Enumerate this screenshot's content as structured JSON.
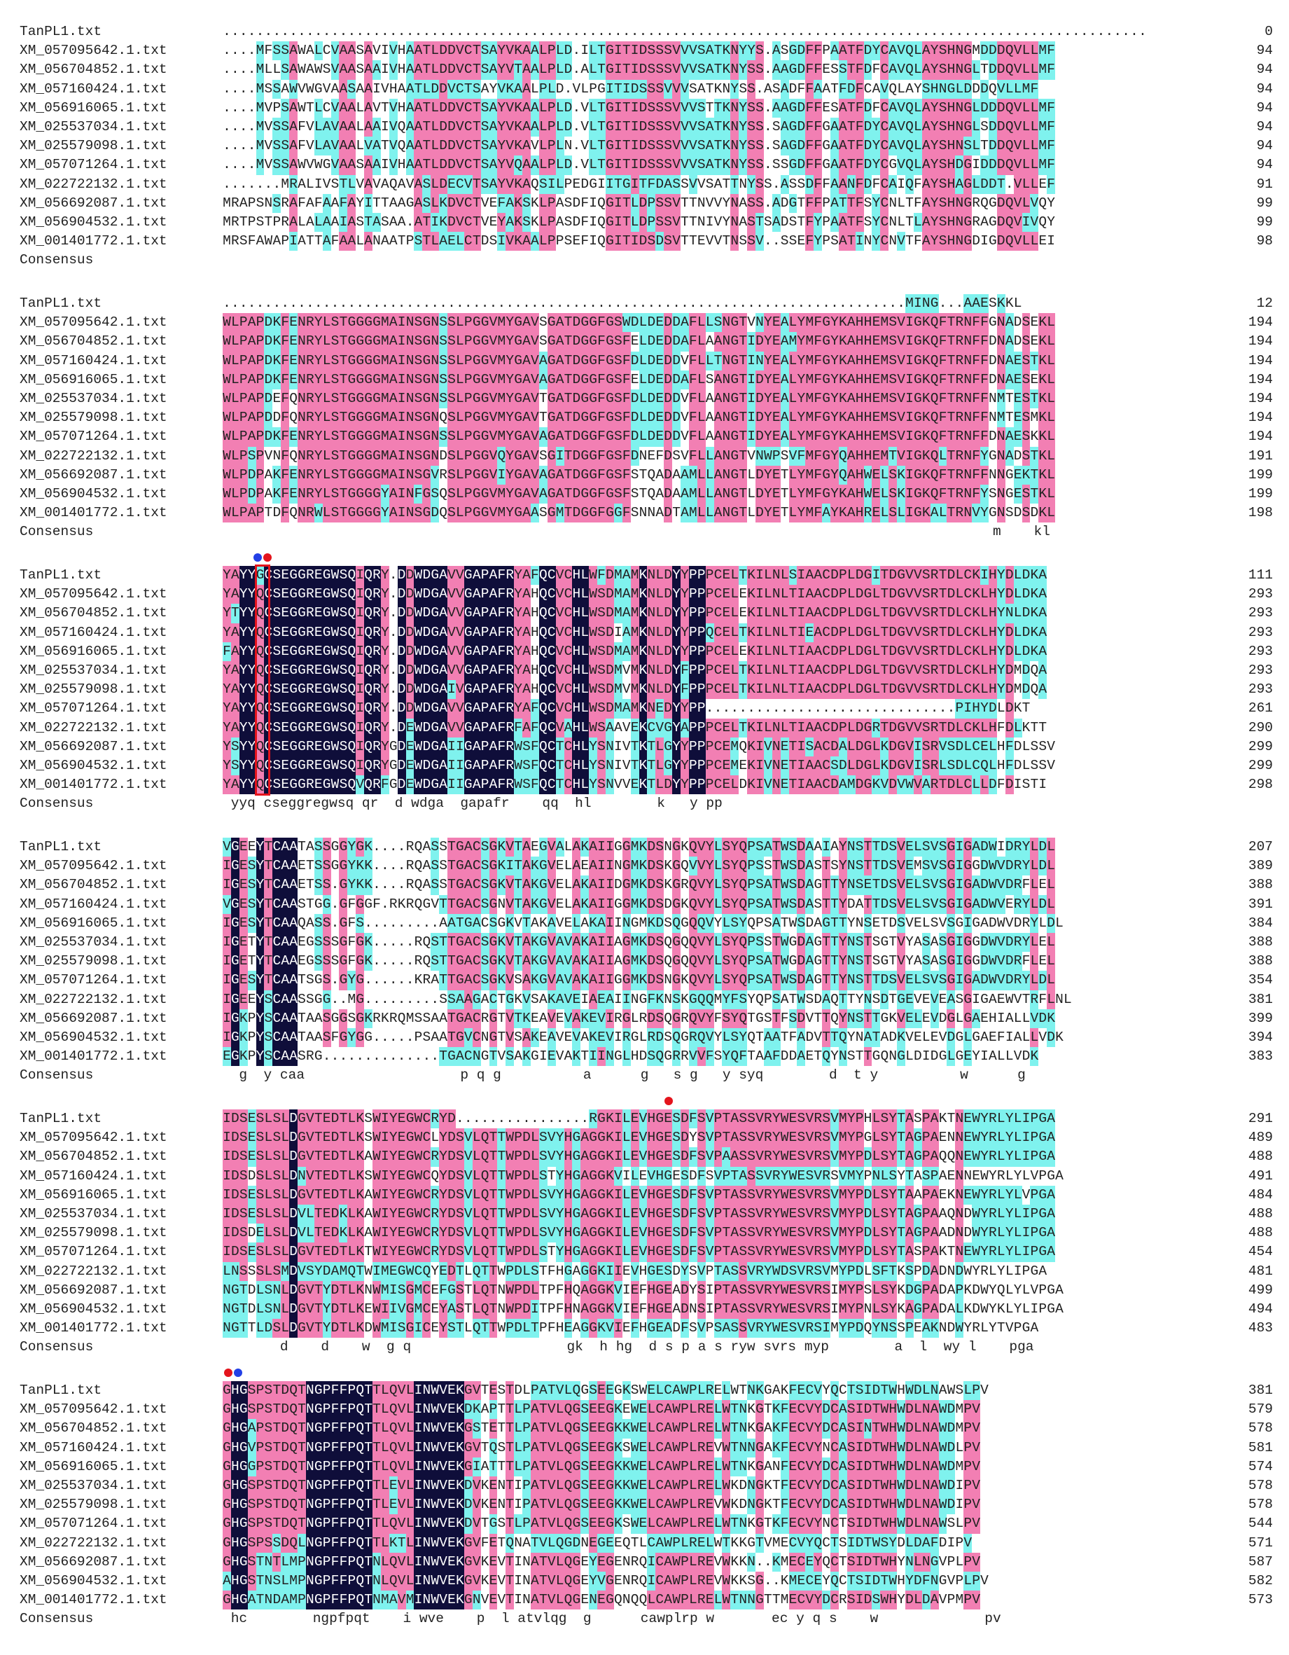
{
  "colors": {
    "identical": "#0f0e3a",
    "similar_high": "#f27fb3",
    "similar_low": "#7ff2ee",
    "highlight_box": "#e4141c",
    "dot_red": "#e4141c",
    "dot_blue": "#2340e6"
  },
  "blocks": [
    {
      "rows": [
        {
          "name": "TanPL1.txt",
          "seq": "...............................................................................................................",
          "num": "0"
        },
        {
          "name": "XM_057095642.1.txt",
          "seq": "....MFSSAWALCVAASAVIVHAATLDDVCTSAYVKAALPLD.ILTGITIDSSSVVVSATKNYYS.ASGDFFPAATFDYCAVQLAYSHNGMDDDQVLLMF",
          "num": "94"
        },
        {
          "name": "XM_056704852.1.txt",
          "seq": "....MLLSAWAWSVAASAAIVHAATLDDVCTSAYVTAALPLD.ALTGITIDSSSVVVSATKNYSS.AAGDFFESSTFDFCAVQLAYSHNGLTDDQVLLMF",
          "num": "94"
        },
        {
          "name": "XM_057160424.1.txt",
          "seq": "....MSSAWVWGVAASAAIVHAATLDDVCTSAYVKAALPLD.VLPGITIDSSSVVVSATKNYSS.ASADFFAATFDFCAVQLAYSHNGLDDDQVLLMF",
          "num": "94"
        },
        {
          "name": "XM_056916065.1.txt",
          "seq": "....MVPSAWTLCVAALAVTVHAATLDDVCTSAYVKAALPLD.VLTGITIDSSSVVVSTTKNYSS.AAGDFFESATFDFCAVQLAYSHNGLDDDQVLLMF",
          "num": "94"
        },
        {
          "name": "XM_025537034.1.txt",
          "seq": "....MVSSAFVLAVAALAAIVQAATLDDVCTSAYVKAALPLD.VLTGITIDSSSVVVSATKNYSS.SAGDFFGAATFDYCAVQLAYSHNGLSDDQVLLMF",
          "num": "94"
        },
        {
          "name": "XM_025579098.1.txt",
          "seq": "....MVSSAFVLAVAALVATVQAATLDDVCTSAYVKAVLPLN.VLTGITIDSSSVVVSATKNYSS.SAGDFFGAATFDYCAVQLAYSHNSLTDDQVLLMF",
          "num": "94"
        },
        {
          "name": "XM_057071264.1.txt",
          "seq": "....MVSSAWVWGVAASAAIVHAATLDDVCTSAYVQAALPLD.VLTGITIDSSSVVVSATKNYSS.SSGDFFGAATFDYCGVQLAYSHDGIDDDQVLLMF",
          "num": "94"
        },
        {
          "name": "XM_022722132.1.txt",
          "seq": ".......MRALIVSTLVAVAQAVASLDECVTSAYVKAQSILPEDGIITGITFDASSVVSATTNYSS.ASSDFFAANFDFCAIQFAYSHAGLDDT.VLLEF",
          "num": "91"
        },
        {
          "name": "XM_056692087.1.txt",
          "seq": "MRAPSNSRAFAFAAFAYITTAAGASLKDVCTVEFAKSKLPASDFIQGITLDPSSVTTNVVYNASS.ADGTFFPATTFSYCNLTFAYSHNGRQGDQVLVQY",
          "num": "99"
        },
        {
          "name": "XM_056904532.1.txt",
          "seq": "MRTPSTPRALALAAIASTASAA.ATIKDVCTVEYAKSKLPASDFIQGITLDPSSVTTNIVYNASTSADSTFYPAATFSYCNLTLAYSHNGRAGDQVIVQY",
          "num": "99"
        },
        {
          "name": "XM_001401772.1.txt",
          "seq": "MRSFAWAPIATTAFAALANAATPSTLAELCTDSIVKAALPPSEFIQGITIDSDSVTTEVVTNSSV..SSEFYPSATINYCNVTFAYSHNGDIGDQVLLEI",
          "num": "98"
        }
      ],
      "consensus": ""
    },
    {
      "rows": [
        {
          "name": "TanPL1.txt",
          "seq": "..................................................................................MING...AAESKKL",
          "num": "12"
        },
        {
          "name": "XM_057095642.1.txt",
          "seq": "WLPAPDKFENRYLSTGGGGMAINSGNSSLPGGVMYGAVSGATDGGFGSWDLDEDDAFLLSNGTVNYEALYMFGYKAHHEMSVIGKQFTRNFFGNADSEKL",
          "num": "194"
        },
        {
          "name": "XM_056704852.1.txt",
          "seq": "WLPAPDKFENRYLSTGGGGMAINSGNSSLPGGVMYGAVSGATDGGFGSFELDEDDAFLAANGTIDYEAMYMFGYKAHHEMSVIGKQFTRNFFDNADSEKL",
          "num": "194"
        },
        {
          "name": "XM_057160424.1.txt",
          "seq": "WLPAPDKFENRYLSTGGGGMAINSGNSSLPGGVMYGAVAGATDGGFGSFDLDEDDVFLLTNGTINYEALYMFGYKAHHEMSVIGKQFTRNFFDNAESTKL",
          "num": "194"
        },
        {
          "name": "XM_056916065.1.txt",
          "seq": "WLPAPDKFENRYLSTGGGGMAINSGNSSLPGGVMYGAVAGATDGGFGSFELDEDDAFLSANGTIDYEALYMFGYKAHHEMSVIGKQFTRNFFDNAESEKL",
          "num": "194"
        },
        {
          "name": "XM_025537034.1.txt",
          "seq": "WLPAPDEFQNRYLSTGGGGMAINSGNSSLPGGVMYGAVTGATDGGFGSFDLDEDDVFLAANGTIDYEALYMFGYKAHHEMSVIGKQFTRNFFNMTESTKL",
          "num": "194"
        },
        {
          "name": "XM_025579098.1.txt",
          "seq": "WLPAPDDFQNRYLSTGGGGMAINSGNQSLPGGVMYGAVTGATDGGFGSFDLDEDDVFLAANGTIDYEALYMFGYKAHHEMSVIGKQFTRNFFNMTESMKL",
          "num": "194"
        },
        {
          "name": "XM_057071264.1.txt",
          "seq": "WLPAPDKFENRYLSTGGGGMAINSGNSSLPGGVMYGAVAGATDGGFGSFDLDEDDVFLAANGTIDYEALYMFGYKAHHEMSVIGKQFTRNFFDNAESKKL",
          "num": "194"
        },
        {
          "name": "XM_022722132.1.txt",
          "seq": "WLPSPVNFQNRYLSTGGGGMAINSGNDSLPGGVQYGAVSGITDGGFGSFDNEFDSVFLLANGTVNWPSVFMFGYQAHHEMTVIGKQLTRNFYGNADSTKL",
          "num": "191"
        },
        {
          "name": "XM_056692087.1.txt",
          "seq": "WLPDPAKFENRYLSTGGGGMAINSGVRSLPGGVIYGAVAGATDGGFGSFSTQADAAMLLANGTLDYETLYMFGYQAHWELSKIGKQFTRNFFNNGEKTKL",
          "num": "199"
        },
        {
          "name": "XM_056904532.1.txt",
          "seq": "WLPDPAKFENRYLSTGGGGYAINFGSQSLPGGVMYGAVAGATDGGFGSFSTQADAAMLLANGTLDYETLYMFGYKAHWELSKIGKQFTRNFYSNGESTKL",
          "num": "199"
        },
        {
          "name": "XM_001401772.1.txt",
          "seq": "WLPAPTDFQNRWLSTGGGGYAINSGDQSLPGGVMYGAASGMTDGGFGGFSNNADTAMLLANGTLDYETLYMFAYKAHRELSLIGKALTRNVYGNSDSDKL",
          "num": "198"
        }
      ],
      "consensus": "                                                                                              m    kl"
    },
    {
      "rows": [
        {
          "name": "TanPL1.txt",
          "seq": "YAYYGCSEGGREGWSQIQRY.DDWDGAVVGAPAFRYAFQCVCHLWFDMAMKNLDYYPPPCELTKILNLSIAACDPLDGITDGVVSRTDLCKIHYDLDKA",
          "num": "111"
        },
        {
          "name": "XM_057095642.1.txt",
          "seq": "YAYYQCSEGGREGWSQIQRY.DDWDGAVVGAPAFRYAHQCVCHLWSDMAMKNLDYYPPPCELEKILNLTIAACDPLDGLTDGVVSRTDLCKLHYDLDKA",
          "num": "293"
        },
        {
          "name": "XM_056704852.1.txt",
          "seq": "YTYYQCSEGGREGWSQIQRY.DDWDGAVVGAPAFRYAHQCVCHLWSDMAMKNLDYYPPPCELEKILNLTIAACDPLDGLTDGVVSRTDLCKLHYNLDKA",
          "num": "293"
        },
        {
          "name": "XM_057160424.1.txt",
          "seq": "YAYYQCSEGGREGWSQIQRY.DDWDGAVVGAPAFRYAHQCVCHLWSDIAMKNLDYYPPQCELTKILNLTIEACDPLDGLTDGVVSRTDLCKLHYDLDKA",
          "num": "293"
        },
        {
          "name": "XM_056916065.1.txt",
          "seq": "FAYYQCSEGGREGWSQIQRY.DDWDGAVVGAPAFRYAHQCVCHLWSDMAMKNLDYYPPPCELEKILNLTIAACDPLDGLTDGVVSRTDLCKLHYDLDKA",
          "num": "293"
        },
        {
          "name": "XM_025537034.1.txt",
          "seq": "YAYYQCSEGGREGWSQIQRY.DDWDGAVVGAPAFRYAHQCVCHLWSDMVMKNLDYFPPPCELTKILNLTIAACDPLDGLTDGVVSRTDLCKLHYDMDQA",
          "num": "293"
        },
        {
          "name": "XM_025579098.1.txt",
          "seq": "YAYYQCSEGGREGWSQIQRY.DDWDGAIVGAPAFRYAHQCVCHLWSDMVMKNLDYFPPPCELTKILNLTIAACDPLDGLTDGVVSRTDLCKLHYDMDQA",
          "num": "293"
        },
        {
          "name": "XM_057071264.1.txt",
          "seq": "YAYYQCSEGGREGWSQIQRY.DDWDGAVVGAPAFRYAFQCVCHLWSDMAMKNEDYYPP..............................PIHYDLDKT",
          "num": "261"
        },
        {
          "name": "XM_022722132.1.txt",
          "seq": "YAYYQCSEGGREGWSQIQRY.DEWDGAVVGAPAFRFAFQCVAHLWSAAVEKCVGYAPPPCELTKILNLTIAACDPLDGRTDGVVSRTDLCKLHFDLKTT",
          "num": "290"
        },
        {
          "name": "XM_056692087.1.txt",
          "seq": "YSYYQCSEGGREGWSQIQRYGDEWDGAIIGAPAFRWSFQCTCHLYSNIVTKTLGYYPPPCEMQKIVNETISACDALDGLKDGVISRVSDLCELHFDLSSV",
          "num": "299"
        },
        {
          "name": "XM_056904532.1.txt",
          "seq": "YSYYQCSEGGREGWSQIQRYGDEWDGAIIGAPAFRWSFQCTCHLYSNIVTKTLGYYPPPCEMEKIVNETIAACSDLDGLKDGVISRLSDLCQLHFDLSSV",
          "num": "299"
        },
        {
          "name": "XM_001401772.1.txt",
          "seq": "YAYYQCSEGGREGWSQVQRFGDEWDGAIIGAPAFRWSFQCTCHLYSNVVEKTLDYYPPPCELDKIVNETIAACDAMDGKVDVWVARTDLCLLDFDISTI",
          "num": "298"
        }
      ],
      "consensus": " yyq cseggregwsq qr  d wdga  gapafr    qq  hl        k   y pp"
    },
    {
      "rows": [
        {
          "name": "TanPL1.txt",
          "seq": "VGEEYTCAATASSGGYGK....RQASSTGACSGKVTAEGVALAKAIIGGMKDSNGKQVYLSYQPSATWSDAAIAYNSTTDSVELSVSGIGADWIDRYLDL",
          "num": "207"
        },
        {
          "name": "XM_057095642.1.txt",
          "seq": "IGESYTCAAETSSGGYKK....RQASSTGACSGKITAKGVELAEAIINGMKDSKGQVVYLSYQPSSTWSDASTSYNSTTDSVEMSVSGIGGDWVDRYLDL",
          "num": "389"
        },
        {
          "name": "XM_056704852.1.txt",
          "seq": "IGESYTCAAETSS.GYKK....RQASSTGACSGKVTAKGVELAKAIIDGMKDSKGRQVYLSYQPSATWSDAGTTYNSETDSVELSVSGIGADWVDRFLEL",
          "num": "388"
        },
        {
          "name": "XM_057160424.1.txt",
          "seq": "VGESYTCAASTGG.GFGGF.RKRQGVTTGACSGNVTAKGVELAKAIIGGMKDSDGKQVYLSYQPSATWSDASTTYDATTDSVELSVSGIGADWVERYLDL",
          "num": "391"
        },
        {
          "name": "XM_056916065.1.txt",
          "seq": "IGESYTCAAQASS.GFS.........AATGACSGKVTAKAVELAKAIINGMKDSQGQQVYLSYQPSATWSDAGTTYNSETDSVELSVSGIGADWVDRYLDL",
          "num": "384"
        },
        {
          "name": "XM_025537034.1.txt",
          "seq": "IGETYTCAAEGSSSGFGK.....RQSTTGACSGKVTAKGVAVAKAIIAGMKDSQGQQVYLSYQPSSTWGDAGTTYNSTSGTVYASASGIGGDWVDRYLEL",
          "num": "388"
        },
        {
          "name": "XM_025579098.1.txt",
          "seq": "IGETYTCAAEGSSSGFGK.....RQSTTGACSGKVTAKGVAVAKAIIAGMKDSQGQQVYLSYQPSATWGDAGTTYNSTSGTVYASASGIGGDWVDRFLEL",
          "num": "388"
        },
        {
          "name": "XM_057071264.1.txt",
          "seq": "IGESYTCAATSGS.GYG......KRATTGACSGKVSAKGVAVAKAIIGGMKDSNGKQVYLSYQPSATWSDAGTTYNSTTDSVELSVSGIGADWVDRYLDL",
          "num": "354"
        },
        {
          "name": "XM_022722132.1.txt",
          "seq": "IGEEYSCAASSGG..MG.........SSAAGACTGKVSAKAVEIAEAIINGFKNSKGQQMYFSYQPSATWSDAQTTYNSDTGEVEVEASGIGAEWVTRFLNL",
          "num": "381"
        },
        {
          "name": "XM_056692087.1.txt",
          "seq": "IGKPYSCAATAASGGSGKRKRQMSSAATGACRGTVTKEAVEVAKEVIRGLRDSQGRQVYFSYQTGSTFSDVTTQYNSTTGKVELEVDGLGAEHIALLVDK",
          "num": "399"
        },
        {
          "name": "XM_056904532.1.txt",
          "seq": "IGKPYSCAATAASFGYGG.....PSAATGVCNGTVSAKEAVEVAKEVIRGLRDSQGRQVYLSYQTAATFADVTTQYNATADKVELEVDGLGAEFIALLVDK",
          "num": "394"
        },
        {
          "name": "XM_001401772.1.txt",
          "seq": "EGKPYSCAASRG..............TGACNGTVSAKGIEVAKTIINGLHDSQGRRVVFSYQFTAAFDDAETQYNSTTGQNGLDIDGLGEYIALLVDK",
          "num": "383"
        }
      ],
      "consensus": "  g  y caa                   p q g          a      g   s g   y syq        d  t y          w      g"
    },
    {
      "rows": [
        {
          "name": "TanPL1.txt",
          "seq": "IDSESLSLDGVTEDTLKSWIYEGWCRYD................RGKILEVHGESDFSVPTASSVRYWESVRSVMYPHLSYTASPAKTNEWYRLYLIPGA",
          "num": "291"
        },
        {
          "name": "XM_057095642.1.txt",
          "seq": "IDSESLSLDGVTEDTLKSWIYEGWCLYDSVLQTTWPDLSVYHGAGGKILEVHGESDYSVPTASSVRYWESVRSVMYPGLSYTAGPAENNEWYRLYLIPGA",
          "num": "489"
        },
        {
          "name": "XM_056704852.1.txt",
          "seq": "IDSESLSLDGVTEDTLKAWIYEGWCRYDSVLQTTWPDLSVYHGAGGKILEVHGESDFSVPAASSVRYWESVRSVMYPDLSYTAGPAQQNEWYRLYLIPGA",
          "num": "488"
        },
        {
          "name": "XM_057160424.1.txt",
          "seq": "IDSDSLSLDNVTEDTLKSWIYEGWCQYDSVLQTTWPDLSTYHGAGGKVILEVHGESDFSVPTASSVRYWESVRSVMYPNLSYTASPAENNEWYRLYLVPGA",
          "num": "491"
        },
        {
          "name": "XM_056916065.1.txt",
          "seq": "IDSESLSLDGVTEDTLKAWIYEGWCRYDSVLQTTWPDLSVYHGAGGKILEVHGESDFSVPTASSVRYWESVRSVMYPDLSYTAAPAEKNEWYRLYLVPGA",
          "num": "484"
        },
        {
          "name": "XM_025537034.1.txt",
          "seq": "IDSESLSLDVLTEDKLKAWIYEGWCRYDSVLQTTWPDLSVYHGAGGKILEVHGESDFSVPTASSVRYWESVRSVMYPDLSYTAGPAAQNDWYRLYLIPGA",
          "num": "488"
        },
        {
          "name": "XM_025579098.1.txt",
          "seq": "IDSDELSLDVLTEDKLKAWIYEGWCRYDSVLQTTWPDLSVYHGAGGKILEVHGESDFSVPTASSVRYWESVRSVMYPDLSYTAGPAADNDWYRLYLIPGA",
          "num": "488"
        },
        {
          "name": "XM_057071264.1.txt",
          "seq": "IDSESLSLDGVTEDTLKTWIYEGWCRYDSVLQTTWPDLSTYHGAGGKILEVHGESDFSVPTASSVRYWESVRSVMYPDLSYTASPAKTNEWYRLYLIPGA",
          "num": "454"
        },
        {
          "name": "XM_022722132.1.txt",
          "seq": "LNSSSLSMDVSYDAMQTWIMEGWCQYEDTLQTTWPDLSTFHGAGGKIIEVHGESDYSVPTASSVRYWDSVRSVMYPDLSFTKSPDADNDWYRLYLIPGA",
          "num": "481"
        },
        {
          "name": "XM_056692087.1.txt",
          "seq": "NGTDLSNLDGVTYDTLKNWMISGMCEFGSTLQTNWPDLTPFHQAGGKVIEFHGEADYSIPTASSVRYWESVRSIMYPSLSYKDGPADAPKDWYQLYLVPGA",
          "num": "499"
        },
        {
          "name": "XM_056904532.1.txt",
          "seq": "NGTDLSNLDGVTYDTLKEWIIVGMCEYASTLQTNWPDITPFHNAGGKVIEFHGEADNSIPTASSVRYWESVRSIMYPNLSYKAGPADALKDWYKLYLIPGA",
          "num": "494"
        },
        {
          "name": "XM_001401772.1.txt",
          "seq": "NGTTLDSLDGVTYDTLKDWMISGICEYSTLQTTWPDLTPFHEAGGKVIEFHGEADFSVPSASSVRYWESVRSIMYPDQYNSSPEAKNDWYRLYTVPGA",
          "num": "483"
        }
      ],
      "consensus": "       d    d    w  g q                   gk  h hg  d s p a s ryw svrs myp        a  l  wy l    pga"
    },
    {
      "rows": [
        {
          "name": "TanPL1.txt",
          "seq": "GHGSPSTDQTNGPFFPQTTLQVLINWVEKGVTESTDLPATVLQGSEEGKSWELCAWPLRELWTNKGAKFECVYQCTSIDTWHWDLNAWSLPV",
          "num": "381"
        },
        {
          "name": "XM_057095642.1.txt",
          "seq": "GHGSPSTDQTNGPFFPQTTLQVLINWVEKDKAPTTLPATVLQGSEEGKEWELCAWPLRELWTNKGTKFECVYDCASIDTWHWDLNAWDMPV",
          "num": "579"
        },
        {
          "name": "XM_056704852.1.txt",
          "seq": "GHGAPSTDQTNGPFFPQTTLQVLINWVEKGSTETTLPATVLQGSEEGKKWELCAWPLRELWTNKGAKFECVYDCASINTWHWDLNAWDMPV",
          "num": "578"
        },
        {
          "name": "XM_057160424.1.txt",
          "seq": "GHGVPSTDQTNGPFFPQTTLQVLINWVEKGVTQSTLPATVLQGSEEGKSWELCAWPLREVWTNNGAKFECVYNCASIDTWHWDLNAWDLPV",
          "num": "581"
        },
        {
          "name": "XM_056916065.1.txt",
          "seq": "GHGGPSTDQTNGPFFPQTTLQVLINWVEKGIATTTLPATVLQGSEEGKKWELCAWPLRELWTNKGANFECVYDCASIDTWHWDLNAWDMPV",
          "num": "574"
        },
        {
          "name": "XM_025537034.1.txt",
          "seq": "GHGSPSTDQTNGPFFPQTTLEVLINWVEKDVKENTIPATVLQGSEEGKKWELCAWPLRELWKDNGKTFECVYDCASIDTWHWDLNAWDIPV",
          "num": "578"
        },
        {
          "name": "XM_025579098.1.txt",
          "seq": "GHGSPSTDQTNGPFFPQTTLEVLINWVEKDVKENTIPATVLQGSEEGKKWELCAWPLREVWKDNGKTFECVYDCASIDTWHWDLNAWDIPV",
          "num": "578"
        },
        {
          "name": "XM_057071264.1.txt",
          "seq": "GHGSPSTDQTNGPFFPQTTLQVLINWVEKDVTGSTLPATVLQGSEEGKSWELCAWPLRELWTNKGTKFECVYNCTSIDTWHWDLNAWSLPV",
          "num": "544"
        },
        {
          "name": "XM_022722132.1.txt",
          "seq": "GHGSPSSDQLNGPFFPQTTLKTLINWVEKGVFETQNATVLQGDNEGEEQTLCAWPLRELWTKKGTVMECVYQCTSIDTWSYDLDAFDIPV",
          "num": "571"
        },
        {
          "name": "XM_056692087.1.txt",
          "seq": "GHGSTNTLMPNGPFFPQTNLQVLINWVEKGVKEVTINATVLQGEYEGENRQICAWPLREVWKKN..KMECEYQCTSIDTWHYNLNGVPLPV",
          "num": "587"
        },
        {
          "name": "XM_056904532.1.txt",
          "seq": "AHGSTNSLMPNGPFFPQTNLQVLINWVEKGVKEVTINATVLQGEYVGENRQICAWPLREVWKKSG..KMECEYQCTSIDTWHYDFNGVPLPV",
          "num": "582"
        },
        {
          "name": "XM_001401772.1.txt",
          "seq": "GHGATNDAMPNGPFFPQTNMAVMINWVEKGNVEVTINATVLQGENEGQNQQLCAWPLRELWTNNGTTMECVYDCRSIDSWHYDLDAVPMPV",
          "num": "573"
        }
      ],
      "consensus": " hc        ngpfpqt    i wve    p  l atvlqg  g      cawplrp w       ec y q s    w             pv"
    },
    {
      "rows": [],
      "consensus": ""
    }
  ],
  "consensus_label": "Consensus"
}
